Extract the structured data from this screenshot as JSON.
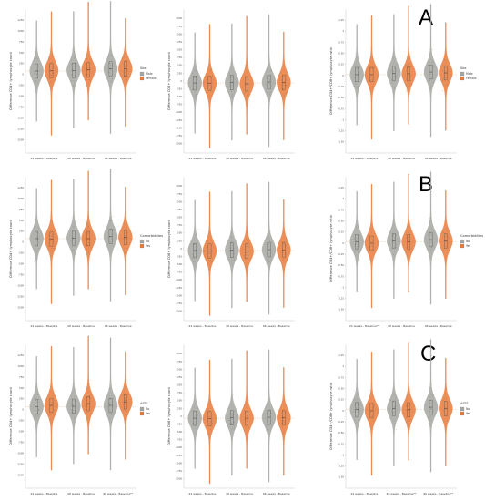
{
  "figure": {
    "row_labels": [
      "A",
      "B",
      "C"
    ],
    "colors": {
      "group1": "#a4a6a1",
      "group2": "#e87a3b",
      "axis": "#cccccc",
      "ref_line": "#e8b48a"
    }
  },
  "chart_data": [
    {
      "type": "violin",
      "row": 0,
      "col": 0,
      "ylabel": "Difference CD4+ lymphocyte count",
      "categories": [
        "24 weeks - Baseline",
        "48 weeks - Baseline",
        "96 weeks - Baseline"
      ],
      "ylim": [
        -1800,
        1500
      ],
      "yticks": [
        -1500,
        -1250,
        -1000,
        -750,
        -500,
        -250,
        0,
        250,
        500,
        750,
        1000,
        1250
      ],
      "legend": {
        "title": "Sex",
        "entries": [
          "Male",
          "Female"
        ]
      },
      "series": [
        {
          "name": "Male",
          "medians": [
            80,
            95,
            130
          ]
        },
        {
          "name": "Female",
          "medians": [
            90,
            110,
            130
          ]
        }
      ]
    },
    {
      "type": "violin",
      "row": 0,
      "col": 1,
      "ylabel": "Difference CD8+ lymphocyte count",
      "categories": [
        "24 weeks - Baseline",
        "48 weeks - Baseline",
        "96 weeks - Baseline"
      ],
      "ylim": [
        -2300,
        2300
      ],
      "yticks": [
        -2000,
        -1750,
        -1500,
        -1250,
        -1000,
        -750,
        -500,
        -250,
        0,
        250,
        500,
        750,
        1000,
        1250,
        1500,
        1750,
        2000
      ],
      "legend": null,
      "series": [
        {
          "name": "Male",
          "medians": [
            -60,
            -50,
            -30
          ]
        },
        {
          "name": "Female",
          "medians": [
            -70,
            -90,
            -40
          ]
        }
      ]
    },
    {
      "type": "violin",
      "row": 0,
      "col": 2,
      "ylabel": "Difference CD4+/CD8+ lymphocyte ratio",
      "categories": [
        "24 weeks - Baseline",
        "48 weeks - Baseline",
        "96 weeks - Baseline"
      ],
      "ylim": [
        -1.75,
        1.5
      ],
      "yticks": [
        -1.5,
        -1.25,
        -1.0,
        -0.75,
        -0.5,
        -0.25,
        0,
        0.25,
        0.5,
        0.75,
        1.0,
        1.25
      ],
      "legend": {
        "title": "Sex",
        "entries": [
          "Male",
          "Female"
        ]
      },
      "series": [
        {
          "name": "Male",
          "medians": [
            0.02,
            0.05,
            0.08
          ]
        },
        {
          "name": "Female",
          "medians": [
            0.02,
            0.04,
            0.06
          ]
        }
      ]
    },
    {
      "type": "violin",
      "row": 1,
      "col": 0,
      "ylabel": "Difference CD4+ lymphocyte count",
      "categories": [
        "24 weeks - Baseline",
        "48 weeks - Baseline",
        "96 weeks - Baseline"
      ],
      "ylim": [
        -1800,
        1500
      ],
      "yticks": [
        -1500,
        -1250,
        -1000,
        -750,
        -500,
        -250,
        0,
        250,
        500,
        750,
        1000,
        1250
      ],
      "legend": {
        "title": "Comorbidities",
        "entries": [
          "No",
          "Yes"
        ]
      },
      "series": [
        {
          "name": "No",
          "medians": [
            80,
            95,
            130
          ]
        },
        {
          "name": "Yes",
          "medians": [
            70,
            80,
            110
          ]
        }
      ]
    },
    {
      "type": "violin",
      "row": 1,
      "col": 1,
      "ylabel": "Difference CD8+ lymphocyte count",
      "categories": [
        "24 weeks - Baseline",
        "48 weeks - Baseline",
        "96 weeks - Baseline"
      ],
      "ylim": [
        -2300,
        2300
      ],
      "yticks": [
        -2000,
        -1750,
        -1500,
        -1250,
        -1000,
        -750,
        -500,
        -250,
        0,
        250,
        500,
        750,
        1000,
        1250,
        1500,
        1750,
        2000
      ],
      "legend": null,
      "series": [
        {
          "name": "No",
          "medians": [
            -60,
            -50,
            -30
          ]
        },
        {
          "name": "Yes",
          "medians": [
            -70,
            -80,
            -40
          ]
        }
      ]
    },
    {
      "type": "violin",
      "row": 1,
      "col": 2,
      "ylabel": "Difference CD4+/CD8+ lymphocyte ratio",
      "categories": [
        "24 weeks - Baseline**",
        "48 weeks - Baseline",
        "96 weeks - Baseline"
      ],
      "ylim": [
        -1.75,
        1.5
      ],
      "yticks": [
        -1.5,
        -1.25,
        -1.0,
        -0.75,
        -0.5,
        -0.25,
        0,
        0.25,
        0.5,
        0.75,
        1.0,
        1.25
      ],
      "legend": {
        "title": "Comorbidities",
        "entries": [
          "No",
          "Yes"
        ]
      },
      "series": [
        {
          "name": "No",
          "medians": [
            0.03,
            0.05,
            0.08
          ]
        },
        {
          "name": "Yes",
          "medians": [
            0.0,
            0.03,
            0.05
          ]
        }
      ]
    },
    {
      "type": "violin",
      "row": 2,
      "col": 0,
      "ylabel": "Difference CD4+ lymphocyte count",
      "categories": [
        "24 weeks - Baseline",
        "48 weeks - Baseline",
        "96 weeks - Baseline**"
      ],
      "ylim": [
        -1800,
        1500
      ],
      "yticks": [
        -1500,
        -1250,
        -1000,
        -750,
        -500,
        -250,
        0,
        250,
        500,
        750,
        1000,
        1250
      ],
      "legend": {
        "title": "AIDS",
        "entries": [
          "No",
          "Yes"
        ]
      },
      "series": [
        {
          "name": "No",
          "medians": [
            70,
            80,
            100
          ]
        },
        {
          "name": "Yes",
          "medians": [
            100,
            140,
            180
          ]
        }
      ]
    },
    {
      "type": "violin",
      "row": 2,
      "col": 1,
      "ylabel": "Difference CD8+ lymphocyte count",
      "categories": [
        "24 weeks - Baseline",
        "48 weeks - Baseline",
        "96 weeks - Baseline"
      ],
      "ylim": [
        -2300,
        2300
      ],
      "yticks": [
        -2000,
        -1750,
        -1500,
        -1250,
        -1000,
        -750,
        -500,
        -250,
        0,
        250,
        500,
        750,
        1000,
        1250,
        1500,
        1750,
        2000
      ],
      "legend": null,
      "series": [
        {
          "name": "No",
          "medians": [
            -60,
            -50,
            -30
          ]
        },
        {
          "name": "Yes",
          "medians": [
            -80,
            -60,
            -50
          ]
        }
      ]
    },
    {
      "type": "violin",
      "row": 2,
      "col": 2,
      "ylabel": "Difference CD4+/CD8+ lymphocyte ratio",
      "categories": [
        "24 weeks - Baseline",
        "48 weeks - Baseline**",
        "96 weeks - Baseline**"
      ],
      "ylim": [
        -1.75,
        1.5
      ],
      "yticks": [
        -1.5,
        -1.25,
        -1.0,
        -0.75,
        -0.5,
        -0.25,
        0,
        0.25,
        0.5,
        0.75,
        1.0,
        1.25
      ],
      "legend": {
        "title": "AIDS",
        "entries": [
          "No",
          "Yes"
        ]
      },
      "series": [
        {
          "name": "No",
          "medians": [
            0.03,
            0.05,
            0.08
          ]
        },
        {
          "name": "Yes",
          "medians": [
            0.0,
            0.02,
            0.05
          ]
        }
      ]
    }
  ]
}
